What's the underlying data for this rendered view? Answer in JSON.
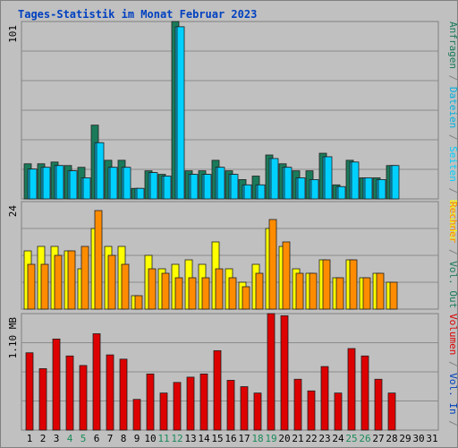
{
  "title": "Tages-Statistik im Monat Februar 2023",
  "colors": {
    "background": "#c0c0c0",
    "frame": "#808080",
    "grid": "#8c8c8c",
    "title": "#0040c0",
    "weekday_label": "#000000",
    "weekend_label": "#1a8a5a",
    "anfragen": "#1a7a5a",
    "dateien": "#00b0e0",
    "seiten": "#00d0ff",
    "besuche": "#ffff00",
    "rechner": "#ff8c00",
    "volumen": "#dd0000",
    "vol_in": "#0040c0",
    "vol_out": "#1a7a5a"
  },
  "chart_data": [
    {
      "type": "bar",
      "panel": "top",
      "ymax_label": "101",
      "ylim": [
        0,
        101
      ],
      "series": [
        {
          "name": "Anfragen",
          "values": [
            20,
            20,
            21,
            19,
            18,
            42,
            22,
            22,
            6,
            16,
            14,
            101,
            16,
            16,
            22,
            16,
            11,
            13,
            25,
            20,
            16,
            16,
            26,
            8,
            22,
            12,
            12,
            19
          ]
        },
        {
          "name": "Dateien",
          "values": [
            17,
            18,
            19,
            16,
            12,
            32,
            18,
            18,
            6,
            15,
            13,
            98,
            14,
            14,
            18,
            14,
            8,
            8,
            23,
            18,
            12,
            11,
            24,
            7,
            21,
            12,
            11,
            19
          ]
        },
        {
          "name": "Seiten",
          "values": [
            17,
            18,
            19,
            16,
            12,
            32,
            18,
            18,
            6,
            15,
            13,
            98,
            14,
            14,
            18,
            14,
            8,
            8,
            23,
            18,
            12,
            11,
            24,
            7,
            21,
            12,
            11,
            19
          ]
        }
      ],
      "right_labels": [
        {
          "text": "Anfragen",
          "color": "anfragen"
        },
        {
          "text": " / ",
          "color": "frame"
        },
        {
          "text": "Dateien",
          "color": "dateien"
        },
        {
          "text": " / ",
          "color": "frame"
        },
        {
          "text": "Seiten",
          "color": "seiten"
        },
        {
          "text": " / ",
          "color": "frame"
        },
        {
          "text": "Besuche",
          "color": "besuche"
        }
      ]
    },
    {
      "type": "bar",
      "panel": "middle",
      "ymax_label": "24",
      "ylim": [
        0,
        24
      ],
      "series": [
        {
          "name": "Besuche",
          "values": [
            13,
            14,
            14,
            13,
            9,
            18,
            14,
            14,
            3,
            12,
            9,
            10,
            11,
            10,
            15,
            9,
            6,
            10,
            18,
            14,
            9,
            8,
            11,
            7,
            11,
            7,
            8,
            6
          ]
        },
        {
          "name": "Rechner",
          "values": [
            10,
            10,
            12,
            13,
            14,
            22,
            12,
            10,
            3,
            9,
            8,
            7,
            7,
            7,
            9,
            7,
            5,
            8,
            20,
            15,
            8,
            8,
            11,
            7,
            11,
            7,
            8,
            6
          ]
        }
      ],
      "right_labels": [
        {
          "text": "Rechner",
          "color": "rechner"
        },
        {
          "text": " / ",
          "color": "frame"
        },
        {
          "text": "Vol. Out",
          "color": "vol_out"
        }
      ]
    },
    {
      "type": "bar",
      "panel": "bottom",
      "ymax_label": "1.10 MB",
      "ylim": [
        0,
        1.1
      ],
      "series": [
        {
          "name": "Volumen",
          "values": [
            0.73,
            0.58,
            0.86,
            0.7,
            0.61,
            0.91,
            0.71,
            0.67,
            0.29,
            0.53,
            0.35,
            0.45,
            0.5,
            0.53,
            0.75,
            0.47,
            0.41,
            0.35,
            1.15,
            1.08,
            0.48,
            0.37,
            0.6,
            0.35,
            0.77,
            0.7,
            0.48,
            0.35
          ]
        }
      ],
      "right_labels": [
        {
          "text": "Volumen",
          "color": "volumen"
        },
        {
          "text": " / ",
          "color": "frame"
        },
        {
          "text": "Vol. In",
          "color": "vol_in"
        },
        {
          "text": " / ",
          "color": "frame"
        }
      ]
    }
  ],
  "days": [
    "1",
    "2",
    "3",
    "4",
    "5",
    "6",
    "7",
    "8",
    "9",
    "10",
    "11",
    "12",
    "13",
    "14",
    "15",
    "16",
    "17",
    "18",
    "19",
    "20",
    "21",
    "22",
    "23",
    "24",
    "25",
    "26",
    "27",
    "28",
    "29",
    "30",
    "31"
  ],
  "weekend_days": [
    4,
    5,
    11,
    12,
    18,
    19,
    25,
    26
  ]
}
